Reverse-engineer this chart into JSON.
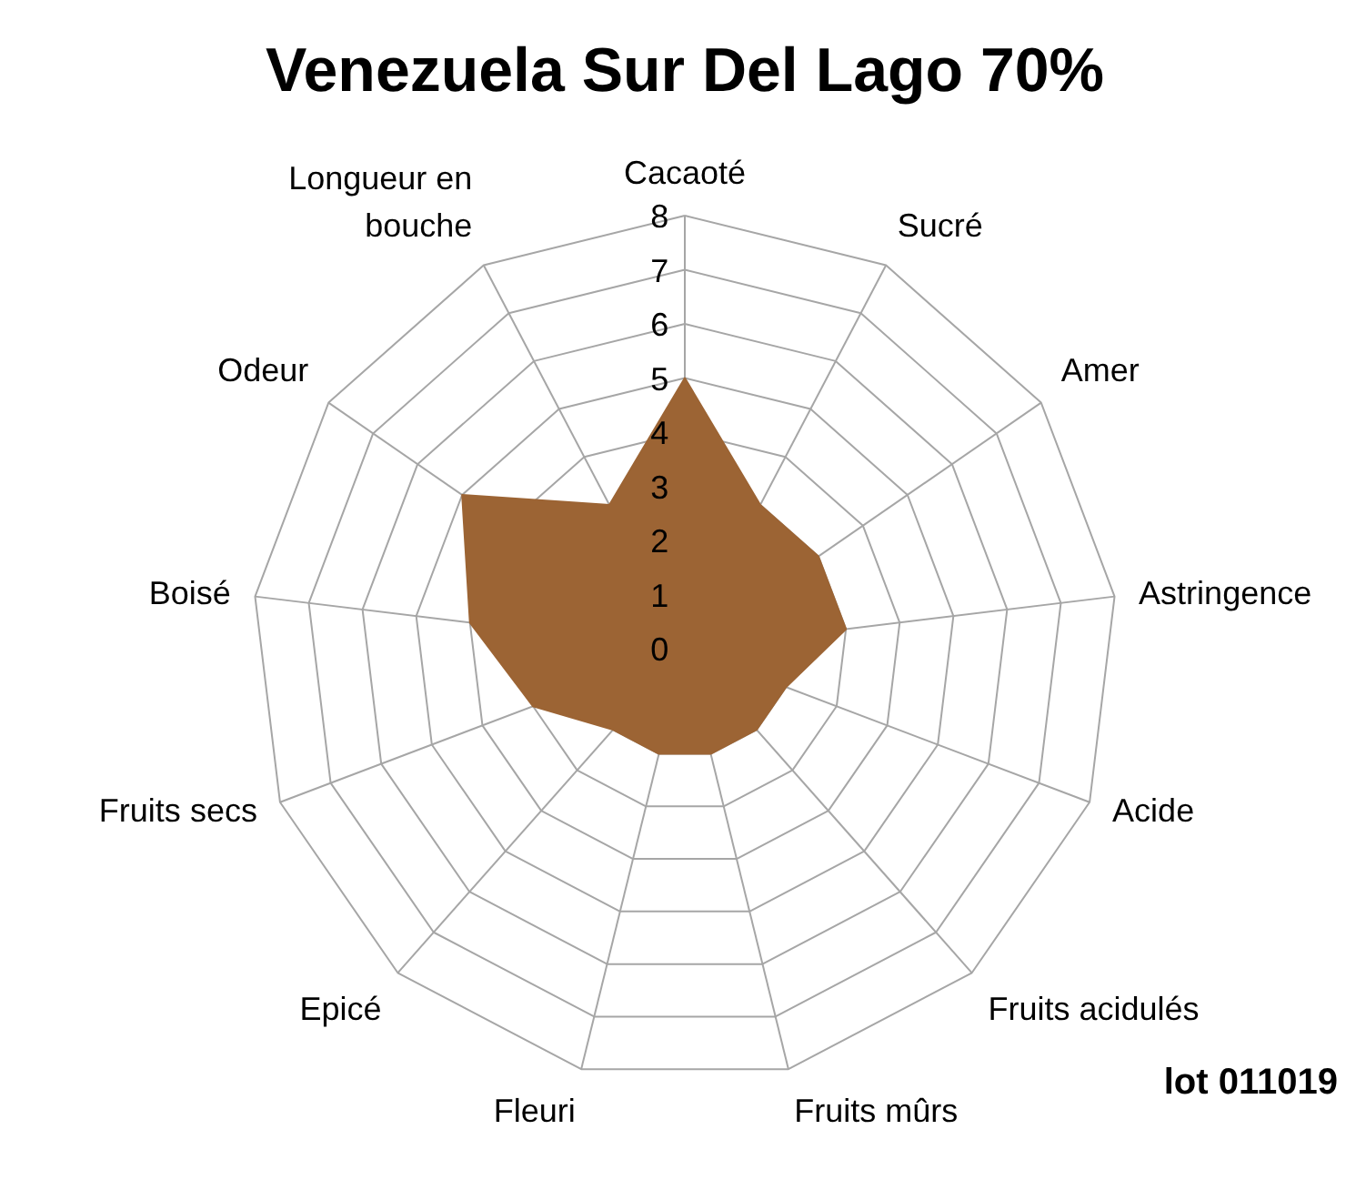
{
  "chart_data": {
    "type": "radar",
    "title": "Venezuela Sur Del Lago 70%",
    "categories": [
      "Cacaoté",
      "Sucré",
      "Amer",
      "Astringence",
      "Acide",
      "Fruits acidulés",
      "Fruits mûrs",
      "Fleuri",
      "Epicé",
      "Fruits secs",
      "Boisé",
      "Odeur",
      "Longueur en bouche"
    ],
    "series": [
      {
        "color": "#9c6434",
        "values": [
          5,
          3,
          3,
          3,
          2,
          2,
          2,
          2,
          2,
          3,
          4,
          5,
          3
        ]
      }
    ],
    "ylim": [
      0,
      8
    ],
    "yticks": [
      0,
      1,
      2,
      3,
      4,
      5,
      6,
      7,
      8
    ],
    "grid": true,
    "annotations": [
      "lot 011019"
    ]
  }
}
